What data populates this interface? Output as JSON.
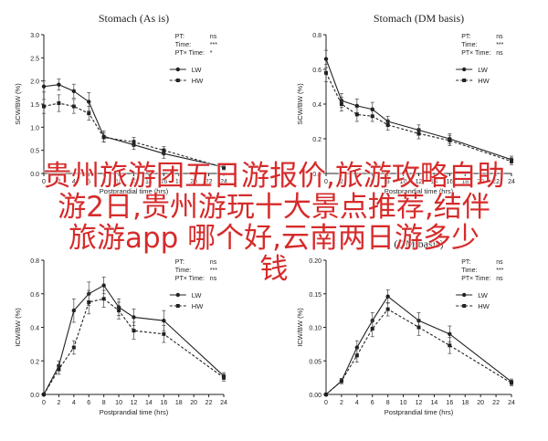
{
  "overlay_text": {
    "line1": "贵州旅游团五日游报价,旅游攻略自助",
    "line2": "游2日,贵州游玩十大景点推荐,结伴",
    "line3": "旅游app 哪个好,云南两日游多少",
    "line4": "钱",
    "color": "#d62b2b"
  },
  "chart_data": [
    {
      "type": "line",
      "title": "Stomach (As is)",
      "xlabel": "Postprandial time (hrs)",
      "ylabel": "SCW/BW (%)",
      "xticks": [
        0,
        2,
        4,
        6,
        8,
        10,
        12,
        14,
        16,
        18,
        20,
        22,
        24
      ],
      "yticks": [
        0.0,
        0.5,
        1.0,
        1.5,
        2.0,
        2.5,
        3.0
      ],
      "ylim": [
        0,
        3.0
      ],
      "stats": [
        {
          "label": "PT:",
          "value": "ns"
        },
        {
          "label": "Time:",
          "value": "***"
        },
        {
          "label": "PT× Time:",
          "value": "*"
        }
      ],
      "series": [
        {
          "name": "LW",
          "style": "solid",
          "marker": "circle",
          "x": [
            0,
            2,
            4,
            6,
            8,
            12,
            16,
            24
          ],
          "y": [
            1.88,
            1.92,
            1.78,
            1.55,
            0.8,
            0.62,
            0.43,
            0.14
          ],
          "err": [
            0.12,
            0.12,
            0.15,
            0.2,
            0.12,
            0.1,
            0.1,
            0.05
          ]
        },
        {
          "name": "HW",
          "style": "dashed",
          "marker": "square",
          "x": [
            0,
            2,
            4,
            6,
            8,
            12,
            16,
            24
          ],
          "y": [
            1.45,
            1.52,
            1.45,
            1.3,
            0.78,
            0.68,
            0.5,
            0.13
          ],
          "err": [
            0.15,
            0.18,
            0.15,
            0.15,
            0.1,
            0.1,
            0.08,
            0.05
          ]
        }
      ]
    },
    {
      "type": "line",
      "title": "Stomach (DM basis)",
      "xlabel": "Postprandial time (hrs)",
      "ylabel": "SCW/BW (%)",
      "xticks": [
        0,
        2,
        4,
        6,
        8,
        10,
        12,
        14,
        16,
        18,
        20,
        22,
        24
      ],
      "yticks": [
        0.0,
        0.2,
        0.4,
        0.6,
        0.8
      ],
      "ylim": [
        0,
        0.8
      ],
      "stats": [
        {
          "label": "PT:",
          "value": "ns"
        },
        {
          "label": "Time:",
          "value": "***"
        },
        {
          "label": "PT× Time:",
          "value": "ns"
        }
      ],
      "series": [
        {
          "name": "LW",
          "style": "solid",
          "marker": "circle",
          "x": [
            0,
            2,
            4,
            6,
            8,
            12,
            16,
            24
          ],
          "y": [
            0.66,
            0.42,
            0.39,
            0.37,
            0.3,
            0.25,
            0.2,
            0.08
          ],
          "err": [
            0.05,
            0.04,
            0.04,
            0.04,
            0.03,
            0.03,
            0.03,
            0.02
          ]
        },
        {
          "name": "HW",
          "style": "dashed",
          "marker": "square",
          "x": [
            0,
            2,
            4,
            6,
            8,
            12,
            16,
            24
          ],
          "y": [
            0.58,
            0.4,
            0.34,
            0.33,
            0.28,
            0.23,
            0.19,
            0.07
          ],
          "err": [
            0.05,
            0.04,
            0.04,
            0.03,
            0.03,
            0.03,
            0.03,
            0.02
          ]
        }
      ]
    },
    {
      "type": "line",
      "title": "",
      "xlabel": "Postprandial time (hrs)",
      "ylabel": "ICW/BW (%)",
      "xticks": [
        0,
        2,
        4,
        6,
        8,
        10,
        12,
        14,
        16,
        18,
        20,
        22,
        24
      ],
      "yticks": [
        0.0,
        0.2,
        0.4,
        0.6,
        0.8
      ],
      "ylim": [
        0,
        0.8
      ],
      "stats": [
        {
          "label": "PT:",
          "value": "ns"
        },
        {
          "label": "Time:",
          "value": "***"
        },
        {
          "label": "PT× Time:",
          "value": "ns"
        }
      ],
      "series": [
        {
          "name": "LW",
          "style": "solid",
          "marker": "circle",
          "x": [
            0,
            2,
            4,
            6,
            8,
            10,
            12,
            16,
            24
          ],
          "y": [
            0.0,
            0.17,
            0.5,
            0.6,
            0.65,
            0.52,
            0.46,
            0.44,
            0.11
          ],
          "err": [
            0.0,
            0.03,
            0.07,
            0.07,
            0.05,
            0.05,
            0.05,
            0.06,
            0.02
          ]
        },
        {
          "name": "HW",
          "style": "dashed",
          "marker": "square",
          "x": [
            0,
            2,
            4,
            6,
            8,
            10,
            12,
            16,
            24
          ],
          "y": [
            0.0,
            0.15,
            0.28,
            0.55,
            0.57,
            0.5,
            0.38,
            0.36,
            0.1
          ],
          "err": [
            0.0,
            0.03,
            0.04,
            0.07,
            0.05,
            0.05,
            0.05,
            0.05,
            0.02
          ]
        }
      ]
    },
    {
      "type": "line",
      "title": "(DM basis)",
      "xlabel": "Postprandial time (hrs)",
      "ylabel": "ICW/BW (%)",
      "xticks": [
        0,
        2,
        4,
        6,
        8,
        10,
        12,
        14,
        16,
        18,
        20,
        22,
        24
      ],
      "yticks": [
        0.0,
        0.05,
        0.1,
        0.15,
        0.2
      ],
      "ylim": [
        0,
        0.2
      ],
      "stats": [
        {
          "label": "PT:",
          "value": "ns"
        },
        {
          "label": "Time:",
          "value": "***"
        },
        {
          "label": "PT× Time:",
          "value": "ns"
        }
      ],
      "series": [
        {
          "name": "LW",
          "style": "solid",
          "marker": "circle",
          "x": [
            0,
            2,
            4,
            6,
            8,
            12,
            16,
            24
          ],
          "y": [
            0.0,
            0.02,
            0.07,
            0.11,
            0.146,
            0.11,
            0.09,
            0.019
          ],
          "err": [
            0.0,
            0.004,
            0.01,
            0.012,
            0.01,
            0.012,
            0.012,
            0.004
          ]
        },
        {
          "name": "HW",
          "style": "dashed",
          "marker": "square",
          "x": [
            0,
            2,
            4,
            6,
            8,
            12,
            16,
            24
          ],
          "y": [
            0.0,
            0.02,
            0.058,
            0.098,
            0.127,
            0.1,
            0.073,
            0.017
          ],
          "err": [
            0.0,
            0.004,
            0.01,
            0.012,
            0.01,
            0.012,
            0.012,
            0.004
          ]
        }
      ]
    }
  ]
}
